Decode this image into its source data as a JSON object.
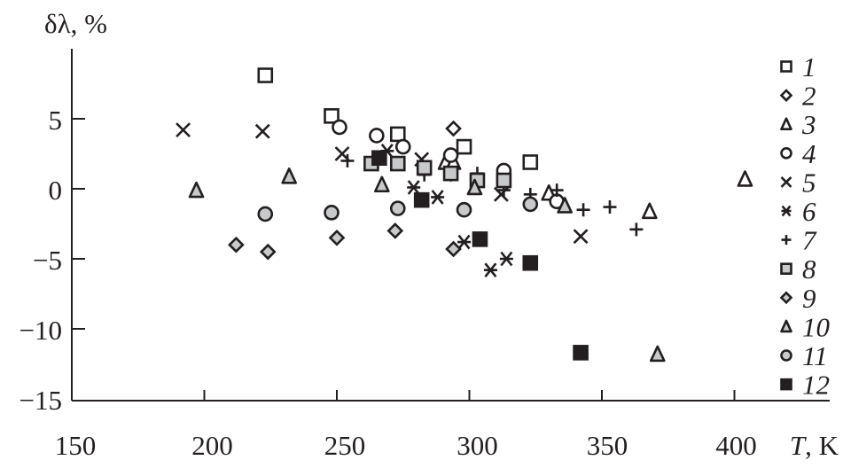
{
  "chart_data": {
    "type": "scatter",
    "title": "",
    "xlabel": "T, K",
    "xlabel_italic_part": "T",
    "xlabel_unit": ", K",
    "ylabel": "δλ, %",
    "xlim": [
      150,
      435
    ],
    "ylim": [
      -15,
      9.8
    ],
    "xticks": [
      150,
      200,
      250,
      300,
      350,
      400
    ],
    "xtick_labels": [
      "150",
      "200",
      "250",
      "300",
      "350",
      "400"
    ],
    "yticks": [
      5,
      0,
      -5,
      -10,
      -15
    ],
    "ytick_labels": [
      "5",
      "0",
      "−5",
      "−10",
      "−15"
    ],
    "grid": false,
    "legend_position": "right",
    "colors": {
      "ink": "#231f20",
      "gray_fill": "#c8c9cb",
      "open_fill": "#ffffff"
    },
    "series": [
      {
        "name": "1",
        "marker": "square",
        "fill": "open",
        "x": [
          223,
          248,
          273,
          298,
          323
        ],
        "y": [
          8.1,
          5.2,
          3.9,
          3.0,
          1.9
        ]
      },
      {
        "name": "2",
        "marker": "diamond",
        "fill": "open",
        "x": [
          294
        ],
        "y": [
          4.3
        ]
      },
      {
        "name": "3",
        "marker": "triangle",
        "fill": "open",
        "x": [
          291,
          294,
          330,
          368,
          404
        ],
        "y": [
          1.9,
          1.9,
          -0.3,
          -1.6,
          0.7
        ]
      },
      {
        "name": "4",
        "marker": "circle",
        "fill": "open",
        "x": [
          251,
          265,
          275,
          293,
          313,
          333
        ],
        "y": [
          4.4,
          3.8,
          3.0,
          2.4,
          1.3,
          -0.9
        ]
      },
      {
        "name": "5",
        "marker": "x",
        "fill": "open",
        "x": [
          192,
          222,
          252,
          282,
          312,
          342
        ],
        "y": [
          4.2,
          4.1,
          2.5,
          2.1,
          -0.4,
          -3.4
        ]
      },
      {
        "name": "6",
        "marker": "asterisk",
        "fill": "open",
        "x": [
          269,
          279,
          288,
          298,
          308,
          314
        ],
        "y": [
          2.7,
          0.1,
          -0.6,
          -3.8,
          -5.8,
          -5.0
        ]
      },
      {
        "name": "7",
        "marker": "plus",
        "fill": "open",
        "x": [
          254,
          283,
          293,
          303,
          313,
          323,
          333,
          343,
          353,
          363
        ],
        "y": [
          2.0,
          1.0,
          1.0,
          1.1,
          -0.1,
          -0.4,
          -0.1,
          -1.5,
          -1.3,
          -2.9
        ]
      },
      {
        "name": "8",
        "marker": "square",
        "fill": "gray",
        "x": [
          263,
          273,
          283,
          293,
          303,
          313
        ],
        "y": [
          1.8,
          1.8,
          1.5,
          1.1,
          0.6,
          0.6
        ]
      },
      {
        "name": "9",
        "marker": "diamond",
        "fill": "gray",
        "x": [
          212,
          224,
          250,
          272,
          294
        ],
        "y": [
          -4.0,
          -4.5,
          -3.5,
          -3.0,
          -4.3
        ]
      },
      {
        "name": "10",
        "marker": "triangle",
        "fill": "gray",
        "x": [
          197,
          232,
          267,
          302,
          336,
          371
        ],
        "y": [
          -0.1,
          0.9,
          0.3,
          0.1,
          -1.2,
          -11.8
        ]
      },
      {
        "name": "11",
        "marker": "circle",
        "fill": "gray",
        "x": [
          223,
          248,
          273,
          298,
          323
        ],
        "y": [
          -1.8,
          -1.7,
          -1.4,
          -1.5,
          -1.1
        ]
      },
      {
        "name": "12",
        "marker": "square",
        "fill": "black",
        "x": [
          266,
          282,
          304,
          323,
          342
        ],
        "y": [
          2.2,
          -0.8,
          -3.6,
          -5.3,
          -11.7
        ]
      }
    ]
  }
}
